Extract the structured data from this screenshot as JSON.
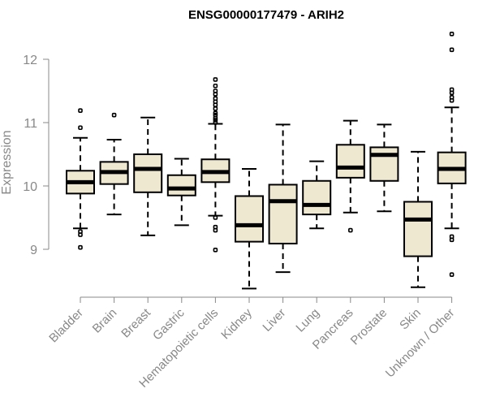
{
  "chart_data": {
    "type": "boxplot",
    "title": "ENSG00000177479 - ARIH2",
    "ylabel": "Expression",
    "xlabel": "",
    "ylim": [
      8.3,
      12.4
    ],
    "yticks": [
      9,
      10,
      11,
      12
    ],
    "ytick_labels": [
      "9",
      "10",
      "11",
      "12"
    ],
    "categories": [
      "Bladder",
      "Brain",
      "Breast",
      "Gastric",
      "Hematopoietic cells",
      "Kidney",
      "Liver",
      "Lung",
      "Pancreas",
      "Prostate",
      "Skin",
      "Unknown / Other"
    ],
    "colors": {
      "box_fill": "#efe8d0",
      "axis": "#888888",
      "outline": "#000000"
    },
    "grid": false,
    "legend": "none",
    "boxes": [
      {
        "category": "Bladder",
        "whislo": 9.33,
        "q1": 9.88,
        "med": 10.06,
        "q3": 10.24,
        "whishi": 10.76,
        "fliers": [
          9.03,
          9.23,
          9.28,
          10.92,
          11.19
        ]
      },
      {
        "category": "Brain",
        "whislo": 9.55,
        "q1": 10.03,
        "med": 10.22,
        "q3": 10.38,
        "whishi": 10.73,
        "fliers": [
          11.12
        ]
      },
      {
        "category": "Breast",
        "whislo": 9.22,
        "q1": 9.9,
        "med": 10.27,
        "q3": 10.5,
        "whishi": 11.08,
        "fliers": []
      },
      {
        "category": "Gastric",
        "whislo": 9.38,
        "q1": 9.85,
        "med": 9.96,
        "q3": 10.17,
        "whishi": 10.43,
        "fliers": []
      },
      {
        "category": "Hematopoietic cells",
        "whislo": 9.53,
        "q1": 10.06,
        "med": 10.22,
        "q3": 10.42,
        "whishi": 10.98,
        "fliers": [
          8.99,
          9.3,
          9.35,
          9.5,
          11.0,
          11.04,
          11.07,
          11.12,
          11.15,
          11.22,
          11.28,
          11.33,
          11.38,
          11.45,
          11.5,
          11.58,
          11.68
        ]
      },
      {
        "category": "Kidney",
        "whislo": 8.38,
        "q1": 9.12,
        "med": 9.38,
        "q3": 9.84,
        "whishi": 10.27,
        "fliers": []
      },
      {
        "category": "Liver",
        "whislo": 8.64,
        "q1": 9.09,
        "med": 9.76,
        "q3": 10.02,
        "whishi": 10.97,
        "fliers": []
      },
      {
        "category": "Lung",
        "whislo": 9.33,
        "q1": 9.55,
        "med": 9.7,
        "q3": 10.08,
        "whishi": 10.39,
        "fliers": []
      },
      {
        "category": "Pancreas",
        "whislo": 9.58,
        "q1": 10.13,
        "med": 10.29,
        "q3": 10.65,
        "whishi": 11.03,
        "fliers": [
          9.3
        ]
      },
      {
        "category": "Prostate",
        "whislo": 9.6,
        "q1": 10.08,
        "med": 10.49,
        "q3": 10.61,
        "whishi": 10.97,
        "fliers": []
      },
      {
        "category": "Skin",
        "whislo": 8.4,
        "q1": 8.89,
        "med": 9.47,
        "q3": 9.75,
        "whishi": 10.54,
        "fliers": []
      },
      {
        "category": "Unknown / Other",
        "whislo": 9.33,
        "q1": 10.04,
        "med": 10.27,
        "q3": 10.53,
        "whishi": 11.24,
        "fliers": [
          8.6,
          9.15,
          9.2,
          11.35,
          11.4,
          11.47,
          11.52,
          12.15,
          12.4
        ]
      }
    ]
  }
}
